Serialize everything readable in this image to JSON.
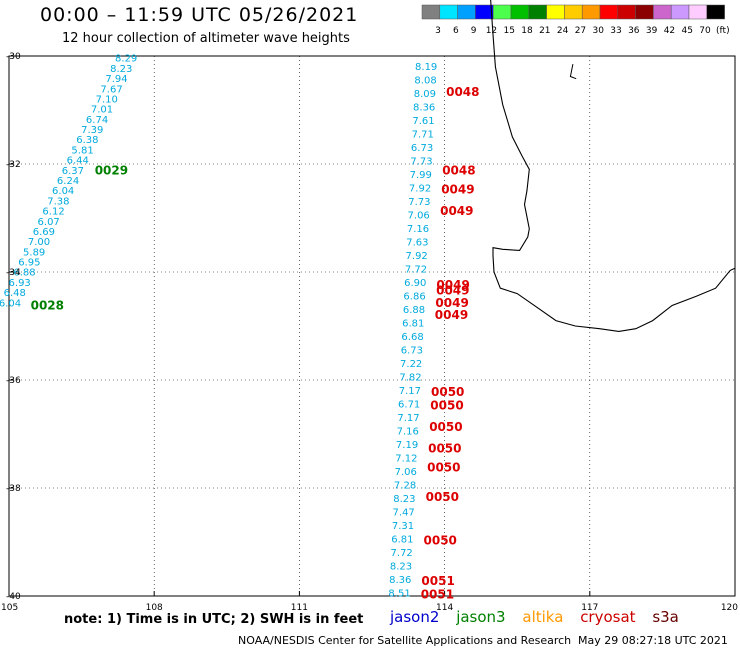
{
  "header": {
    "title": "00:00 – 11:59 UTC 05/26/2021",
    "subtitle": "12 hour collection of altimeter wave heights"
  },
  "colorbar": {
    "ticks": [
      "3",
      "6",
      "9",
      "12",
      "15",
      "18",
      "21",
      "24",
      "27",
      "30",
      "33",
      "36",
      "39",
      "42",
      "45",
      "70",
      "(ft)"
    ],
    "colors": [
      "#808080",
      "#00e5ff",
      "#00a0ff",
      "#0000ff",
      "#4dff4d",
      "#00c000",
      "#008000",
      "#ffff00",
      "#ffcc00",
      "#ff9900",
      "#ff0000",
      "#cc0000",
      "#8b0000",
      "#cc66cc",
      "#cc99ff",
      "#ffccff",
      "#000000"
    ]
  },
  "map": {
    "lon_ticks": [
      "105",
      "108",
      "111",
      "114",
      "117",
      "120"
    ],
    "lat_ticks": [
      "-30",
      "-32",
      "-34",
      "-36",
      "-38",
      "-40"
    ],
    "track_west": {
      "color": "#00aadd",
      "values": [
        "8.29",
        "8.23",
        "7.94",
        "7.67",
        "7.10",
        "7.01",
        "6.74",
        "7.39",
        "6.38",
        "5.81",
        "6.44",
        "6.37",
        "6.24",
        "6.04",
        "7.38",
        "6.12",
        "6.07",
        "6.69",
        "7.00",
        "5.89",
        "6.95",
        "6.88",
        "6.93",
        "6.48",
        "6.04"
      ],
      "times": [
        {
          "label": "0029",
          "color": "#008000",
          "lat": -32.1
        },
        {
          "label": "0028",
          "color": "#008000",
          "lat": -34.6
        }
      ]
    },
    "track_east": {
      "color": "#00aadd",
      "values": [
        "8.19",
        "8.08",
        "8.09",
        "8.36",
        "7.61",
        "7.71",
        "6.73",
        "7.73",
        "7.99",
        "7.92",
        "7.73",
        "7.06",
        "7.16",
        "7.63",
        "7.92",
        "7.72",
        "6.90",
        "6.86",
        "6.88",
        "6.81",
        "6.68",
        "6.73",
        "7.22",
        "7.82",
        "7.17",
        "6.71",
        "7.17",
        "7.16",
        "7.19",
        "7.12",
        "7.06",
        "7.28",
        "8.23",
        "7.47",
        "7.31",
        "6.81",
        "7.72",
        "8.23",
        "8.36",
        "8.51"
      ],
      "times": [
        {
          "label": "0048",
          "color": "#dd0000",
          "lat": -30.65
        },
        {
          "label": "0048",
          "color": "#dd0000",
          "lat": -32.1
        },
        {
          "label": "0049",
          "color": "#dd0000",
          "lat": -32.45
        },
        {
          "label": "0049",
          "color": "#dd0000",
          "lat": -32.85
        },
        {
          "label": "0049",
          "color": "#dd0000",
          "lat": -34.22
        },
        {
          "label": "0049",
          "color": "#dd0000",
          "lat": -34.32
        },
        {
          "label": "0049",
          "color": "#dd0000",
          "lat": -34.56
        },
        {
          "label": "0049",
          "color": "#dd0000",
          "lat": -34.78
        },
        {
          "label": "0050",
          "color": "#dd0000",
          "lat": -36.2
        },
        {
          "label": "0050",
          "color": "#dd0000",
          "lat": -36.45
        },
        {
          "label": "0050",
          "color": "#dd0000",
          "lat": -36.85
        },
        {
          "label": "0050",
          "color": "#dd0000",
          "lat": -37.25
        },
        {
          "label": "0050",
          "color": "#dd0000",
          "lat": -37.6
        },
        {
          "label": "0050",
          "color": "#dd0000",
          "lat": -38.15
        },
        {
          "label": "0050",
          "color": "#dd0000",
          "lat": -38.95
        },
        {
          "label": "0051",
          "color": "#dd0000",
          "lat": -39.7
        },
        {
          "label": "0051",
          "color": "#dd0000",
          "lat": -39.95
        }
      ]
    }
  },
  "footer": {
    "note": "note: 1) Time is in UTC; 2) SWH is in feet",
    "satellites": [
      {
        "name": "jason2",
        "color": "#0000cc"
      },
      {
        "name": "jason3",
        "color": "#008000"
      },
      {
        "name": "altika",
        "color": "#ff9900"
      },
      {
        "name": "cryosat",
        "color": "#cc0000"
      },
      {
        "name": "s3a",
        "color": "#660000"
      }
    ],
    "credit": "NOAA/NESDIS Center for Satellite Applications and Research",
    "timestamp": "May 29 08:27:18 UTC 2021"
  }
}
